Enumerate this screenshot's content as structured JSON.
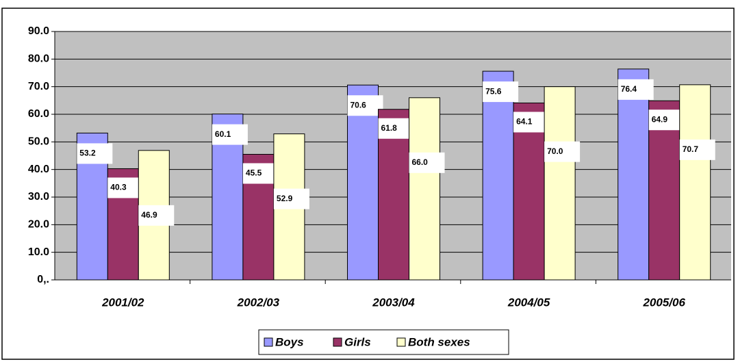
{
  "chart_data": {
    "type": "bar",
    "categories": [
      "2001/02",
      "2002/03",
      "2003/04",
      "2004/05",
      "2005/06"
    ],
    "series": [
      {
        "name": "Boys",
        "color": "#9999ff",
        "values": [
          53.2,
          60.1,
          70.6,
          75.6,
          76.4
        ]
      },
      {
        "name": "Girls",
        "color": "#993366",
        "values": [
          40.3,
          45.5,
          61.8,
          64.1,
          64.9
        ]
      },
      {
        "name": "Both sexes",
        "color": "#ffffcc",
        "values": [
          46.9,
          52.9,
          66.0,
          70.0,
          70.7
        ],
        "value_labels": [
          "46.9",
          "52.9",
          "66.0",
          "70.0",
          "70.7"
        ]
      }
    ],
    "ylim": [
      0,
      90
    ],
    "yticks": [
      {
        "value": 0,
        "label": "0,."
      },
      {
        "value": 10,
        "label": "10.0"
      },
      {
        "value": 20,
        "label": "20.0"
      },
      {
        "value": 30,
        "label": "30.0"
      },
      {
        "value": 40,
        "label": "40.0"
      },
      {
        "value": 50,
        "label": "50.0"
      },
      {
        "value": 60,
        "label": "60.0"
      },
      {
        "value": 70,
        "label": "70.0"
      },
      {
        "value": 80,
        "label": "80.0"
      },
      {
        "value": 90,
        "label": "90.0"
      }
    ],
    "grid": true,
    "legend": "bottom"
  }
}
